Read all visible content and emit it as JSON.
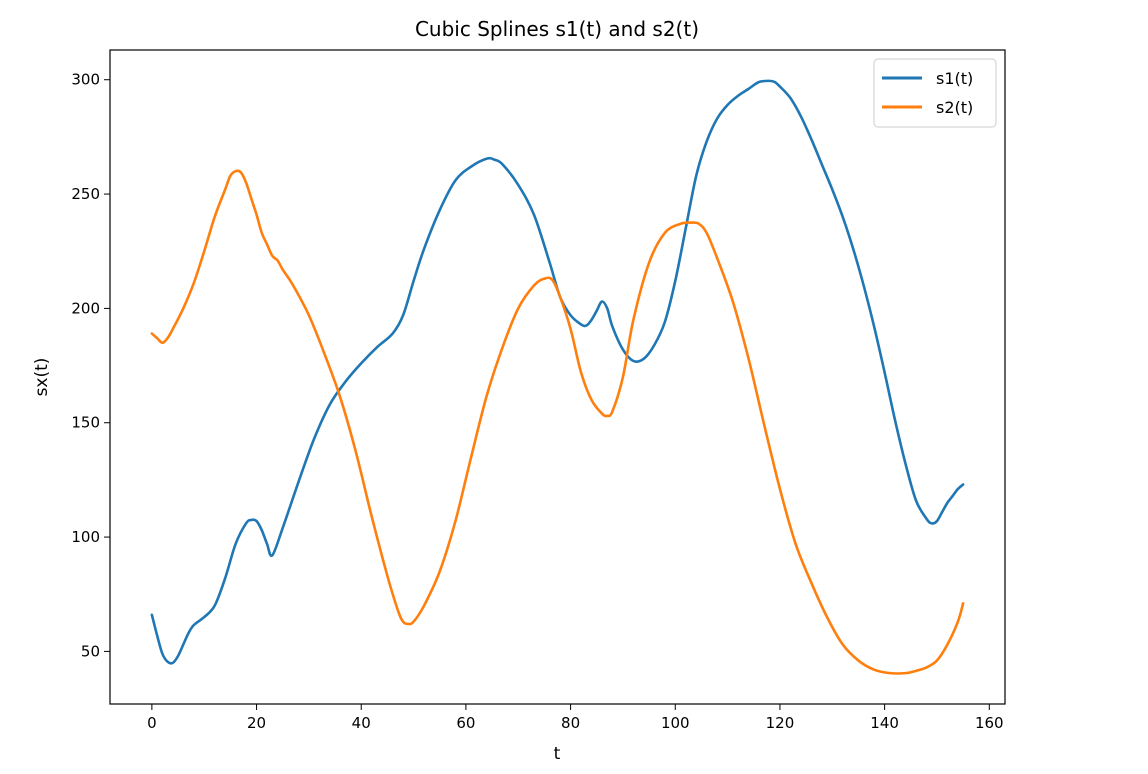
{
  "chart_data": {
    "type": "line",
    "title": "Cubic Splines s1(t) and s2(t)",
    "xlabel": "t",
    "ylabel": "sx(t)",
    "xlim": [
      -8,
      163
    ],
    "ylim": [
      27,
      313
    ],
    "xticks": [
      0,
      20,
      40,
      60,
      80,
      100,
      120,
      140,
      160
    ],
    "yticks": [
      50,
      100,
      150,
      200,
      250,
      300
    ],
    "xtick_labels": [
      "0",
      "20",
      "40",
      "60",
      "80",
      "100",
      "120",
      "140",
      "160"
    ],
    "ytick_labels": [
      "50",
      "100",
      "150",
      "200",
      "250",
      "300"
    ],
    "grid": false,
    "legend_position": "top-right",
    "series": [
      {
        "name": "s1(t)",
        "color": "#1f77b4",
        "x": [
          0,
          1,
          2,
          3,
          4,
          5,
          6,
          7,
          8,
          10,
          12,
          14,
          16,
          18,
          19,
          20,
          21,
          22,
          23,
          25,
          28,
          31,
          34,
          37,
          40,
          43,
          46,
          48,
          50,
          52,
          55,
          58,
          61,
          64,
          65.5,
          67,
          70,
          73,
          76,
          78,
          80,
          82,
          83,
          84,
          85,
          86,
          87,
          88,
          90,
          92,
          94,
          96,
          98,
          100,
          102,
          104,
          106,
          108,
          110,
          112,
          114,
          116,
          118,
          119,
          120,
          122,
          124,
          126,
          128,
          130,
          132,
          134,
          136,
          138,
          140,
          142,
          144,
          146,
          148,
          149,
          150,
          151,
          152,
          153,
          154,
          155
        ],
        "y": [
          66,
          57,
          49,
          45.5,
          45,
          48,
          53,
          58,
          61.5,
          65,
          70,
          82,
          97,
          106,
          107.5,
          107,
          103,
          97,
          92,
          104,
          124,
          143,
          158,
          168,
          176,
          183,
          189,
          197,
          212,
          226,
          243,
          256,
          262,
          265.5,
          265,
          263,
          254,
          241,
          220,
          205,
          197,
          193,
          192.5,
          195,
          199,
          203,
          200,
          192,
          182,
          177,
          178,
          184,
          194,
          212,
          235,
          258,
          273,
          283,
          289,
          293,
          296,
          299,
          299.5,
          299,
          297,
          292,
          284,
          274,
          263,
          252,
          240,
          226,
          210,
          192,
          172,
          151,
          132,
          116,
          108,
          106,
          107,
          111,
          115,
          118,
          121,
          123
        ]
      },
      {
        "name": "s2(t)",
        "color": "#ff7f0e",
        "x": [
          0,
          1,
          2,
          3,
          4,
          6,
          8,
          10,
          12,
          14,
          15,
          16,
          17,
          18,
          19,
          20,
          21,
          22,
          23,
          24,
          25,
          27,
          30,
          33,
          36,
          39,
          42,
          45,
          47,
          48,
          49,
          50,
          52,
          55,
          58,
          61,
          64,
          67,
          70,
          73,
          75,
          76.5,
          78,
          80,
          82,
          84,
          86,
          87,
          88,
          90,
          92,
          95,
          98,
          101,
          103,
          104.5,
          106,
          108,
          111,
          114,
          117,
          120,
          123,
          126,
          129,
          132,
          135,
          138,
          141,
          144,
          146,
          148,
          150,
          152,
          154,
          155
        ],
        "y": [
          189,
          187,
          185,
          187,
          191,
          200,
          211,
          225,
          240,
          252,
          258,
          260,
          259.5,
          255,
          248,
          241,
          233,
          228,
          223,
          221,
          217,
          210,
          197,
          180,
          161,
          137,
          109,
          83,
          68,
          63,
          62,
          63,
          70,
          85,
          107,
          135,
          162,
          183,
          200,
          210,
          213,
          212.5,
          205,
          191,
          172,
          160,
          154,
          153,
          155,
          170,
          195,
          220,
          233,
          237,
          237.5,
          237,
          233,
          222,
          203,
          178,
          149,
          121,
          97,
          80,
          65,
          53,
          46,
          42,
          40.5,
          40.5,
          41.5,
          43,
          46,
          53,
          63,
          71
        ]
      }
    ]
  }
}
